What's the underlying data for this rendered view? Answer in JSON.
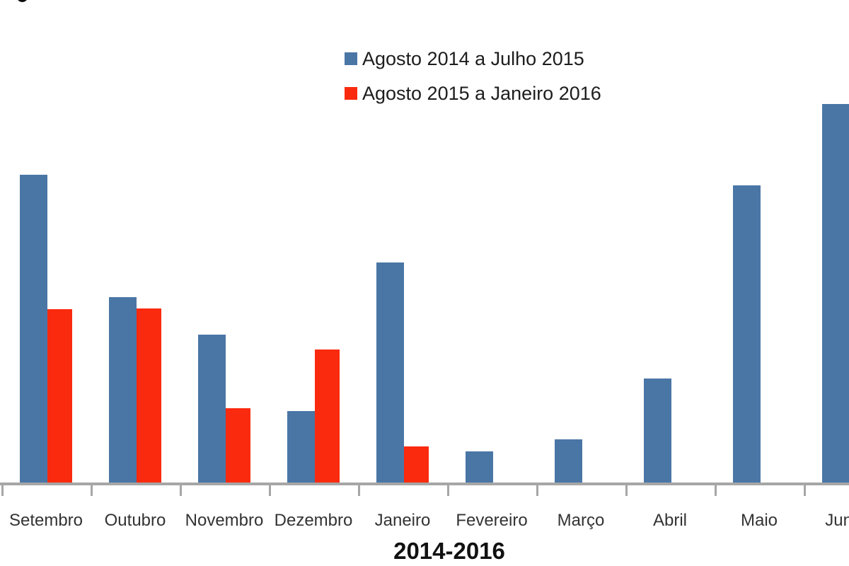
{
  "chart_data": {
    "type": "bar",
    "title": "",
    "xlabel": "2014-2016",
    "ylabel": "",
    "categories": [
      "Setembro",
      "Outubro",
      "Novembro",
      "Dezembro",
      "Janeiro",
      "Fevereiro",
      "Março",
      "Abril",
      "Maio",
      "Junho"
    ],
    "series": [
      {
        "name": "Agosto 2014 a Julho 2015",
        "color": "#4A76A6",
        "values": [
          435,
          262,
          209,
          101,
          311,
          44,
          61,
          147,
          420,
          535
        ]
      },
      {
        "name": "Agosto 2015 a Janeiro 2016",
        "color": "#FA2A0E",
        "values": [
          245,
          246,
          105,
          188,
          51,
          null,
          null,
          null,
          null,
          null
        ]
      }
    ],
    "ylim": [
      0,
      560
    ],
    "y_axis_visible": false,
    "grid": false,
    "legend_position": "top-center",
    "axis_color": "#A6A6A6",
    "tick_label_color": "#333333",
    "axis_title_color": "#111111",
    "note": "No y-axis scale shown; values are relative bar heights (pixels). Last category (Junho) bar and label are clipped by the right image edge."
  }
}
